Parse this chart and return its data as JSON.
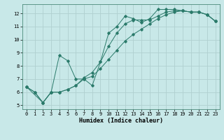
{
  "title": "",
  "xlabel": "Humidex (Indice chaleur)",
  "ylabel": "",
  "bg_color": "#c8e8e8",
  "grid_color": "#b0d0d0",
  "line_color": "#2a7a6a",
  "xlim": [
    -0.5,
    23.5
  ],
  "ylim": [
    4.7,
    12.7
  ],
  "xticks": [
    0,
    1,
    2,
    3,
    4,
    5,
    6,
    7,
    8,
    9,
    10,
    11,
    12,
    13,
    14,
    15,
    16,
    17,
    18,
    19,
    20,
    21,
    22,
    23
  ],
  "yticks": [
    5,
    6,
    7,
    8,
    9,
    10,
    11,
    12
  ],
  "series": [
    {
      "x": [
        0,
        1,
        2,
        3,
        4,
        5,
        6,
        7,
        8,
        9,
        10,
        11,
        12,
        13,
        14,
        15,
        16,
        17,
        18,
        19,
        20,
        21,
        22,
        23
      ],
      "y": [
        6.4,
        6.0,
        5.2,
        6.0,
        8.8,
        8.4,
        7.0,
        7.0,
        6.5,
        8.3,
        10.5,
        11.0,
        11.8,
        11.6,
        11.3,
        11.6,
        12.3,
        12.3,
        12.3,
        12.2,
        12.1,
        12.1,
        11.9,
        11.4
      ]
    },
    {
      "x": [
        0,
        1,
        2,
        3,
        4,
        5,
        6,
        7,
        8,
        9,
        10,
        11,
        12,
        13,
        14,
        15,
        16,
        17,
        18,
        19,
        20,
        21,
        22,
        23
      ],
      "y": [
        6.4,
        6.0,
        5.2,
        6.0,
        6.0,
        6.2,
        6.5,
        7.0,
        7.2,
        7.8,
        8.5,
        9.2,
        9.9,
        10.4,
        10.8,
        11.2,
        11.6,
        11.9,
        12.1,
        12.2,
        12.1,
        12.1,
        11.9,
        11.4
      ]
    },
    {
      "x": [
        0,
        2,
        3,
        4,
        5,
        6,
        7,
        8,
        9,
        10,
        11,
        12,
        13,
        14,
        15,
        16,
        17,
        18,
        19,
        20,
        21,
        22,
        23
      ],
      "y": [
        6.4,
        5.2,
        6.0,
        6.0,
        6.2,
        6.5,
        7.1,
        7.5,
        8.3,
        9.5,
        10.5,
        11.2,
        11.5,
        11.5,
        11.5,
        11.8,
        12.1,
        12.2,
        12.2,
        12.1,
        12.1,
        11.9,
        11.4
      ]
    }
  ],
  "figsize": [
    3.2,
    2.0
  ],
  "dpi": 100
}
